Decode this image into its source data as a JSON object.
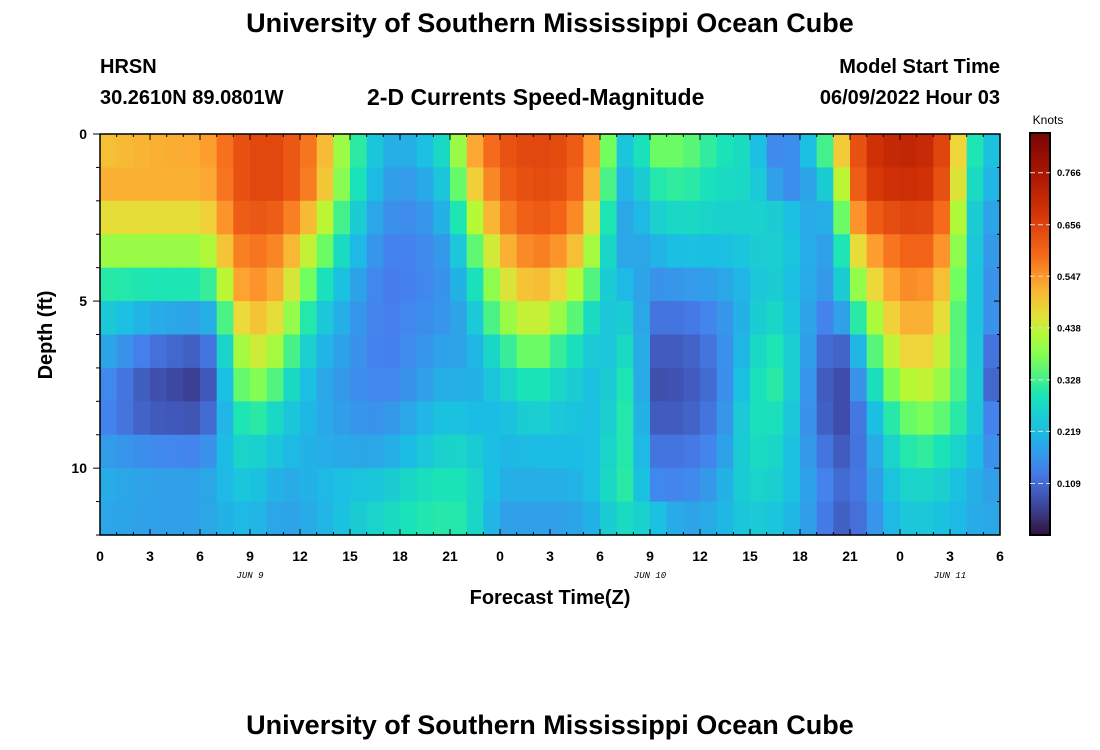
{
  "header": {
    "title": "University of Southern Mississippi Ocean Cube",
    "station": "HRSN",
    "coords": "30.2610N  89.0801W",
    "subtitle": "2-D Currents Speed-Magnitude",
    "model_label": "Model Start Time",
    "model_time": "06/09/2022 Hour 03"
  },
  "footer": {
    "title": "University of Southern Mississippi Ocean Cube"
  },
  "chart_data": {
    "type": "heatmap",
    "title": "2-D Currents Speed-Magnitude",
    "xlabel": "Forecast Time(Z)",
    "ylabel": "Depth (ft)",
    "x_tick_labels": [
      "0",
      "3",
      "6",
      "9",
      "12",
      "15",
      "18",
      "21",
      "0",
      "3",
      "6",
      "9",
      "12",
      "15",
      "18",
      "21",
      "0",
      "3",
      "6"
    ],
    "x_day_labels": [
      "JUN 9",
      "JUN 10",
      "JUN 11"
    ],
    "y_tick_labels": [
      "0",
      "5",
      "10"
    ],
    "ylim": [
      0,
      12
    ],
    "y_inverted": true,
    "xlim_hours": [
      0,
      54
    ],
    "colorbar": {
      "unit": "Knots",
      "range": [
        0.0,
        0.85
      ],
      "tick_labels": [
        "0.766",
        "0.656",
        "0.547",
        "0.438",
        "0.328",
        "0.219",
        "0.109"
      ],
      "tick_values": [
        0.766,
        0.656,
        0.547,
        0.438,
        0.328,
        0.219,
        0.109
      ]
    },
    "grid": {
      "time_hours_step": 1,
      "depth_ft": [
        0.5,
        1.5,
        2.5,
        3.5,
        4.5,
        5.5,
        6.5,
        7.5,
        8.5,
        9.5,
        10.5,
        11.5
      ],
      "profiles": {
        "hours": [
          0,
          3,
          6,
          7,
          8,
          9,
          10,
          11,
          13,
          15,
          17,
          19,
          21,
          22,
          24,
          26,
          27.5,
          29,
          30,
          31,
          32,
          33,
          35,
          37,
          39,
          40,
          41,
          43,
          44,
          45,
          46,
          48,
          50,
          51,
          52,
          53,
          54
        ],
        "values": [
          [
            0.5,
            0.52,
            0.47,
            0.4,
            0.31,
            0.25,
            0.2,
            0.16,
            0.15,
            0.18,
            0.2,
            0.19
          ],
          [
            0.52,
            0.52,
            0.47,
            0.4,
            0.3,
            0.2,
            0.12,
            0.08,
            0.09,
            0.15,
            0.18,
            0.18
          ],
          [
            0.53,
            0.52,
            0.47,
            0.4,
            0.3,
            0.18,
            0.09,
            0.05,
            0.08,
            0.14,
            0.18,
            0.18
          ],
          [
            0.55,
            0.54,
            0.5,
            0.44,
            0.34,
            0.22,
            0.15,
            0.12,
            0.14,
            0.18,
            0.2,
            0.2
          ],
          [
            0.62,
            0.62,
            0.6,
            0.56,
            0.52,
            0.45,
            0.38,
            0.33,
            0.28,
            0.26,
            0.23,
            0.21
          ],
          [
            0.64,
            0.64,
            0.62,
            0.58,
            0.55,
            0.5,
            0.44,
            0.38,
            0.32,
            0.27,
            0.24,
            0.22
          ],
          [
            0.65,
            0.65,
            0.62,
            0.58,
            0.55,
            0.5,
            0.45,
            0.38,
            0.3,
            0.25,
            0.22,
            0.2
          ],
          [
            0.64,
            0.64,
            0.6,
            0.55,
            0.5,
            0.44,
            0.37,
            0.3,
            0.25,
            0.22,
            0.19,
            0.18
          ],
          [
            0.56,
            0.55,
            0.48,
            0.4,
            0.32,
            0.26,
            0.22,
            0.2,
            0.2,
            0.2,
            0.21,
            0.2
          ],
          [
            0.35,
            0.33,
            0.28,
            0.24,
            0.2,
            0.18,
            0.17,
            0.16,
            0.17,
            0.19,
            0.23,
            0.24
          ],
          [
            0.2,
            0.18,
            0.16,
            0.14,
            0.13,
            0.13,
            0.13,
            0.14,
            0.16,
            0.19,
            0.24,
            0.27
          ],
          [
            0.2,
            0.17,
            0.15,
            0.14,
            0.14,
            0.15,
            0.16,
            0.17,
            0.2,
            0.23,
            0.28,
            0.3
          ],
          [
            0.3,
            0.26,
            0.22,
            0.18,
            0.17,
            0.17,
            0.19,
            0.21,
            0.24,
            0.27,
            0.3,
            0.31
          ],
          [
            0.5,
            0.45,
            0.38,
            0.3,
            0.24,
            0.2,
            0.18,
            0.19,
            0.22,
            0.26,
            0.29,
            0.3
          ],
          [
            0.62,
            0.6,
            0.56,
            0.5,
            0.44,
            0.38,
            0.3,
            0.25,
            0.22,
            0.21,
            0.2,
            0.18
          ],
          [
            0.65,
            0.64,
            0.62,
            0.58,
            0.52,
            0.46,
            0.38,
            0.31,
            0.26,
            0.22,
            0.2,
            0.18
          ],
          [
            0.64,
            0.63,
            0.6,
            0.55,
            0.48,
            0.4,
            0.32,
            0.27,
            0.24,
            0.22,
            0.2,
            0.18
          ],
          [
            0.6,
            0.58,
            0.54,
            0.48,
            0.4,
            0.32,
            0.27,
            0.24,
            0.23,
            0.22,
            0.21,
            0.19
          ],
          [
            0.48,
            0.45,
            0.4,
            0.34,
            0.28,
            0.24,
            0.22,
            0.22,
            0.22,
            0.23,
            0.24,
            0.22
          ],
          [
            0.25,
            0.22,
            0.2,
            0.2,
            0.22,
            0.24,
            0.26,
            0.28,
            0.29,
            0.3,
            0.31,
            0.28
          ],
          [
            0.22,
            0.2,
            0.18,
            0.18,
            0.21,
            0.26,
            0.3,
            0.32,
            0.32,
            0.31,
            0.31,
            0.28
          ],
          [
            0.36,
            0.3,
            0.25,
            0.2,
            0.16,
            0.12,
            0.09,
            0.07,
            0.09,
            0.12,
            0.15,
            0.24
          ],
          [
            0.36,
            0.32,
            0.28,
            0.23,
            0.17,
            0.12,
            0.09,
            0.08,
            0.09,
            0.12,
            0.14,
            0.18
          ],
          [
            0.3,
            0.28,
            0.26,
            0.22,
            0.18,
            0.15,
            0.13,
            0.12,
            0.13,
            0.15,
            0.18,
            0.2
          ],
          [
            0.27,
            0.27,
            0.26,
            0.24,
            0.22,
            0.22,
            0.24,
            0.26,
            0.28,
            0.28,
            0.27,
            0.25
          ],
          [
            0.18,
            0.22,
            0.26,
            0.26,
            0.26,
            0.28,
            0.31,
            0.32,
            0.3,
            0.28,
            0.26,
            0.24
          ],
          [
            0.12,
            0.14,
            0.24,
            0.25,
            0.24,
            0.26,
            0.29,
            0.3,
            0.28,
            0.26,
            0.25,
            0.23
          ],
          [
            0.26,
            0.2,
            0.18,
            0.18,
            0.18,
            0.16,
            0.14,
            0.12,
            0.12,
            0.14,
            0.16,
            0.16
          ],
          [
            0.4,
            0.3,
            0.22,
            0.18,
            0.16,
            0.12,
            0.08,
            0.06,
            0.07,
            0.1,
            0.12,
            0.1
          ],
          [
            0.58,
            0.56,
            0.5,
            0.42,
            0.34,
            0.24,
            0.12,
            0.08,
            0.07,
            0.08,
            0.1,
            0.09
          ],
          [
            0.68,
            0.66,
            0.6,
            0.52,
            0.45,
            0.38,
            0.3,
            0.24,
            0.18,
            0.16,
            0.15,
            0.14
          ],
          [
            0.72,
            0.7,
            0.65,
            0.6,
            0.56,
            0.52,
            0.48,
            0.42,
            0.35,
            0.3,
            0.26,
            0.24
          ],
          [
            0.7,
            0.68,
            0.64,
            0.6,
            0.55,
            0.52,
            0.48,
            0.44,
            0.38,
            0.32,
            0.27,
            0.24
          ],
          [
            0.6,
            0.58,
            0.54,
            0.5,
            0.46,
            0.42,
            0.4,
            0.36,
            0.32,
            0.27,
            0.24,
            0.22
          ],
          [
            0.36,
            0.34,
            0.3,
            0.28,
            0.27,
            0.27,
            0.29,
            0.31,
            0.3,
            0.26,
            0.22,
            0.21
          ],
          [
            0.24,
            0.22,
            0.2,
            0.2,
            0.2,
            0.2,
            0.19,
            0.18,
            0.18,
            0.18,
            0.18,
            0.18
          ],
          [
            0.22,
            0.2,
            0.17,
            0.14,
            0.12,
            0.12,
            0.05,
            0.03,
            0.1,
            0.14,
            0.18,
            0.2
          ]
        ]
      }
    }
  }
}
